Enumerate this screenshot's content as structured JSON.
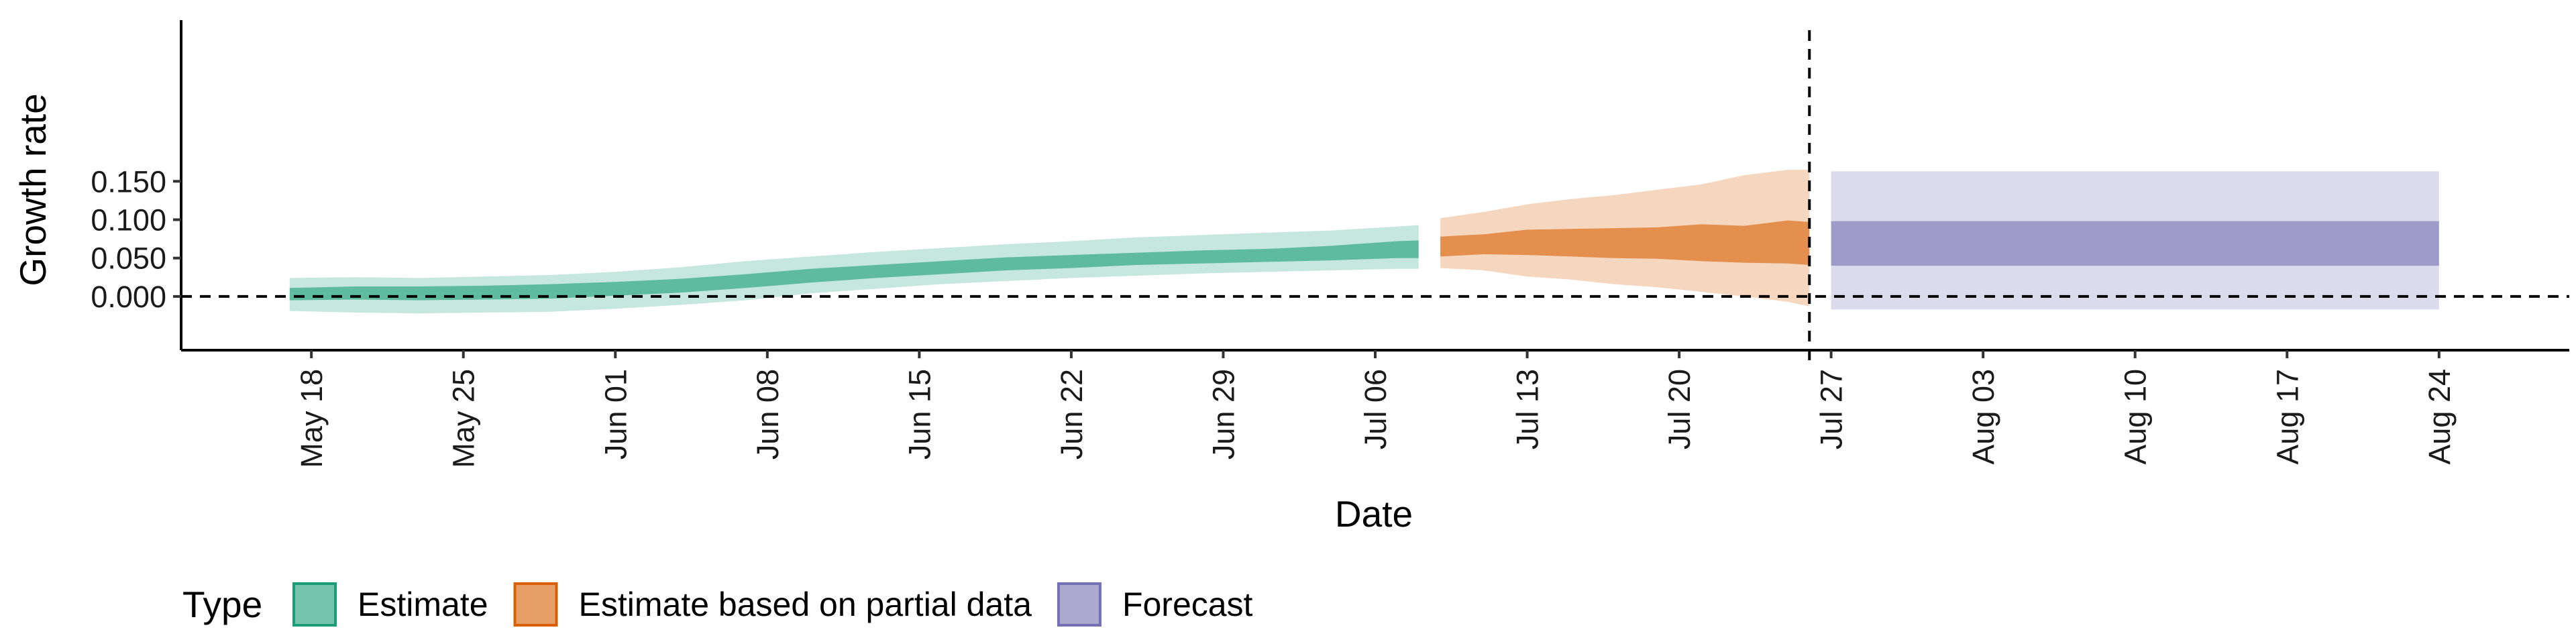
{
  "chart_data": {
    "type": "area",
    "xlabel": "Date",
    "ylabel": "Growth rate",
    "xlim": [
      "2020-05-12",
      "2020-08-30"
    ],
    "ylim": [
      -0.07,
      0.36
    ],
    "y_ticks": [
      0.0,
      0.05,
      0.1,
      0.15
    ],
    "y_tick_labels": [
      "0.000",
      "0.050",
      "0.100",
      "0.150"
    ],
    "x_ticks": [
      "2020-05-18",
      "2020-05-25",
      "2020-06-01",
      "2020-06-08",
      "2020-06-15",
      "2020-06-22",
      "2020-06-29",
      "2020-07-06",
      "2020-07-13",
      "2020-07-20",
      "2020-07-27",
      "2020-08-03",
      "2020-08-10",
      "2020-08-17",
      "2020-08-24"
    ],
    "x_tick_labels": [
      "May 18",
      "May 25",
      "Jun 01",
      "Jun 08",
      "Jun 15",
      "Jun 22",
      "Jun 29",
      "Jul 06",
      "Jul 13",
      "Jul 20",
      "Jul 27",
      "Aug 03",
      "Aug 10",
      "Aug 17",
      "Aug 24"
    ],
    "hline": 0,
    "vline_date": "2020-07-26",
    "grid": false,
    "legend": {
      "title": "Type",
      "position": "bottom",
      "entries": [
        {
          "label": "Estimate",
          "color": "#1b9e77"
        },
        {
          "label": "Estimate based on partial data",
          "color": "#d95f02"
        },
        {
          "label": "Forecast",
          "color": "#7570b3"
        }
      ]
    },
    "series": [
      {
        "name": "Estimate",
        "color": "#1b9e77",
        "dates": [
          "2020-05-17",
          "2020-05-20",
          "2020-05-23",
          "2020-05-26",
          "2020-05-29",
          "2020-06-01",
          "2020-06-04",
          "2020-06-07",
          "2020-06-10",
          "2020-06-13",
          "2020-06-16",
          "2020-06-19",
          "2020-06-22",
          "2020-06-25",
          "2020-06-28",
          "2020-07-01",
          "2020-07-04",
          "2020-07-07",
          "2020-07-08"
        ],
        "inner_lower": [
          -0.005,
          -0.004,
          -0.005,
          -0.004,
          -0.003,
          0.001,
          0.005,
          0.011,
          0.018,
          0.024,
          0.029,
          0.034,
          0.037,
          0.041,
          0.043,
          0.045,
          0.047,
          0.05,
          0.05
        ],
        "inner_upper": [
          0.011,
          0.013,
          0.013,
          0.014,
          0.016,
          0.019,
          0.023,
          0.029,
          0.036,
          0.041,
          0.046,
          0.051,
          0.054,
          0.057,
          0.06,
          0.062,
          0.066,
          0.072,
          0.073
        ],
        "outer_lower": [
          -0.019,
          -0.021,
          -0.022,
          -0.021,
          -0.02,
          -0.016,
          -0.011,
          -0.005,
          0.004,
          0.01,
          0.016,
          0.02,
          0.024,
          0.027,
          0.03,
          0.032,
          0.034,
          0.036,
          0.036
        ],
        "outer_upper": [
          0.024,
          0.025,
          0.024,
          0.026,
          0.028,
          0.032,
          0.038,
          0.046,
          0.052,
          0.058,
          0.063,
          0.068,
          0.072,
          0.077,
          0.08,
          0.083,
          0.086,
          0.091,
          0.093
        ]
      },
      {
        "name": "Estimate based on partial data",
        "color": "#d95f02",
        "dates": [
          "2020-07-09",
          "2020-07-11",
          "2020-07-13",
          "2020-07-15",
          "2020-07-17",
          "2020-07-19",
          "2020-07-21",
          "2020-07-23",
          "2020-07-25",
          "2020-07-26"
        ],
        "inner_lower": [
          0.052,
          0.055,
          0.054,
          0.052,
          0.05,
          0.049,
          0.046,
          0.044,
          0.043,
          0.041
        ],
        "inner_upper": [
          0.078,
          0.081,
          0.087,
          0.088,
          0.089,
          0.09,
          0.094,
          0.092,
          0.099,
          0.097
        ],
        "outer_lower": [
          0.037,
          0.034,
          0.026,
          0.022,
          0.016,
          0.012,
          0.006,
          0.0,
          -0.007,
          -0.013
        ],
        "outer_upper": [
          0.102,
          0.11,
          0.12,
          0.127,
          0.132,
          0.139,
          0.146,
          0.158,
          0.165,
          0.165
        ]
      },
      {
        "name": "Forecast",
        "color": "#7570b3",
        "dates": [
          "2020-07-27",
          "2020-08-24"
        ],
        "inner_lower": [
          0.04,
          0.04
        ],
        "inner_upper": [
          0.098,
          0.098
        ],
        "outer_lower": [
          -0.017,
          -0.017
        ],
        "outer_upper": [
          0.163,
          0.163
        ]
      }
    ]
  }
}
